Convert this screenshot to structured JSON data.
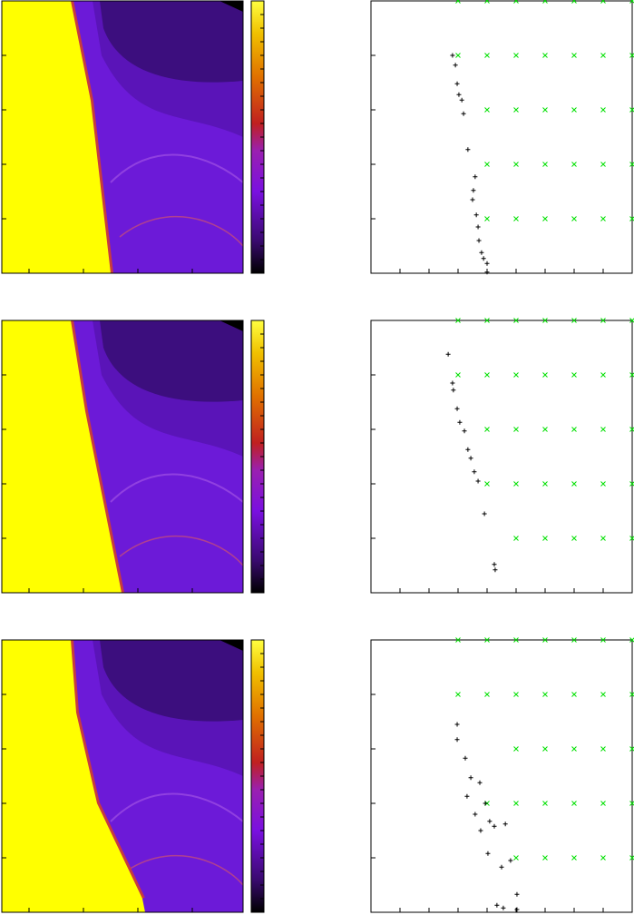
{
  "panels": [
    {
      "heatmap": {
        "type": "heatmap"
      },
      "chart_data": {
        "type": "scatter",
        "xlim": [
          0,
          9
        ],
        "ylim": [
          0,
          5
        ],
        "xticks": [
          0,
          1,
          2,
          3,
          4,
          5,
          6,
          7,
          8,
          9
        ],
        "yticks": [
          0,
          1,
          2,
          3,
          4,
          5
        ],
        "series": [
          {
            "color": "#00e000",
            "marker": "x",
            "x": [
              3,
              4,
              5,
              6,
              7,
              8,
              9,
              3,
              4,
              5,
              6,
              7,
              8,
              9,
              4,
              5,
              6,
              7,
              8,
              9,
              4,
              5,
              6,
              7,
              8,
              9,
              4,
              5,
              6,
              7,
              8,
              9
            ],
            "values": [
              5,
              5,
              5,
              5,
              5,
              5,
              5,
              4,
              4,
              4,
              4,
              4,
              4,
              4,
              3,
              3,
              3,
              3,
              3,
              3,
              2,
              2,
              2,
              2,
              2,
              2,
              1,
              1,
              1,
              1,
              1,
              1
            ]
          },
          {
            "color": "#000000",
            "marker": "+",
            "x": [
              2.81,
              2.91,
              2.97,
              3.03,
              3.13,
              3.19,
              3.34,
              3.59,
              3.53,
              3.5,
              3.63,
              3.69,
              3.72,
              3.81,
              3.88,
              4.0,
              4.0
            ],
            "values": [
              4.0,
              3.82,
              3.48,
              3.28,
              3.18,
              2.93,
              2.27,
              1.77,
              1.52,
              1.35,
              1.07,
              0.85,
              0.6,
              0.38,
              0.27,
              0.18,
              0.02
            ]
          }
        ]
      }
    },
    {
      "heatmap": {
        "type": "heatmap"
      },
      "chart_data": {
        "type": "scatter",
        "xlim": [
          0,
          9
        ],
        "ylim": [
          0,
          5
        ],
        "xticks": [
          0,
          1,
          2,
          3,
          4,
          5,
          6,
          7,
          8,
          9
        ],
        "yticks": [
          0,
          1,
          2,
          3,
          4,
          5
        ],
        "series": [
          {
            "color": "#00e000",
            "marker": "x",
            "x": [
              3,
              4,
              5,
              6,
              7,
              8,
              9,
              3,
              4,
              5,
              6,
              7,
              8,
              9,
              4,
              5,
              6,
              7,
              8,
              9,
              4,
              5,
              6,
              7,
              8,
              9,
              5,
              6,
              7,
              8,
              9
            ],
            "values": [
              5,
              5,
              5,
              5,
              5,
              5,
              5,
              4,
              4,
              4,
              4,
              4,
              4,
              4,
              3,
              3,
              3,
              3,
              3,
              3,
              2,
              2,
              2,
              2,
              2,
              2,
              1,
              1,
              1,
              1,
              1
            ]
          },
          {
            "color": "#000000",
            "marker": "+",
            "x": [
              2.66,
              2.81,
              2.84,
              2.97,
              3.06,
              3.22,
              3.34,
              3.44,
              3.56,
              3.69,
              3.91,
              4.25,
              4.28
            ],
            "values": [
              4.38,
              3.85,
              3.72,
              3.38,
              3.13,
              2.97,
              2.63,
              2.47,
              2.22,
              2.05,
              1.45,
              0.52,
              0.42
            ]
          }
        ]
      }
    },
    {
      "heatmap": {
        "type": "heatmap"
      },
      "chart_data": {
        "type": "scatter",
        "xlim": [
          0,
          9
        ],
        "ylim": [
          0,
          5
        ],
        "xticks": [
          0,
          1,
          2,
          3,
          4,
          5,
          6,
          7,
          8,
          9
        ],
        "yticks": [
          0,
          1,
          2,
          3,
          4,
          5
        ],
        "series": [
          {
            "color": "#00e000",
            "marker": "x",
            "x": [
              3,
              4,
              5,
              6,
              7,
              8,
              9,
              3,
              4,
              5,
              6,
              7,
              8,
              9,
              5,
              6,
              7,
              8,
              9,
              4,
              5,
              6,
              7,
              8,
              9,
              5,
              6,
              7,
              8,
              9
            ],
            "values": [
              5,
              5,
              5,
              5,
              5,
              5,
              5,
              4,
              4,
              4,
              4,
              4,
              4,
              4,
              3,
              3,
              3,
              3,
              3,
              2,
              2,
              2,
              2,
              2,
              2,
              1,
              1,
              1,
              1,
              1
            ]
          },
          {
            "color": "#000000",
            "marker": "+",
            "x": [
              2.97,
              2.97,
              3.25,
              3.44,
              3.75,
              3.31,
              3.59,
              3.94,
              4.09,
              3.78,
              4.25,
              4.03,
              4.63,
              4.81,
              4.5,
              5.03,
              4.34,
              4.56,
              5.03
            ],
            "values": [
              3.45,
              3.17,
              2.83,
              2.47,
              2.38,
              2.13,
              1.8,
              2.0,
              1.67,
              1.5,
              1.58,
              1.08,
              1.62,
              0.95,
              0.83,
              0.33,
              0.13,
              0.08,
              0.05
            ]
          }
        ]
      }
    }
  ]
}
